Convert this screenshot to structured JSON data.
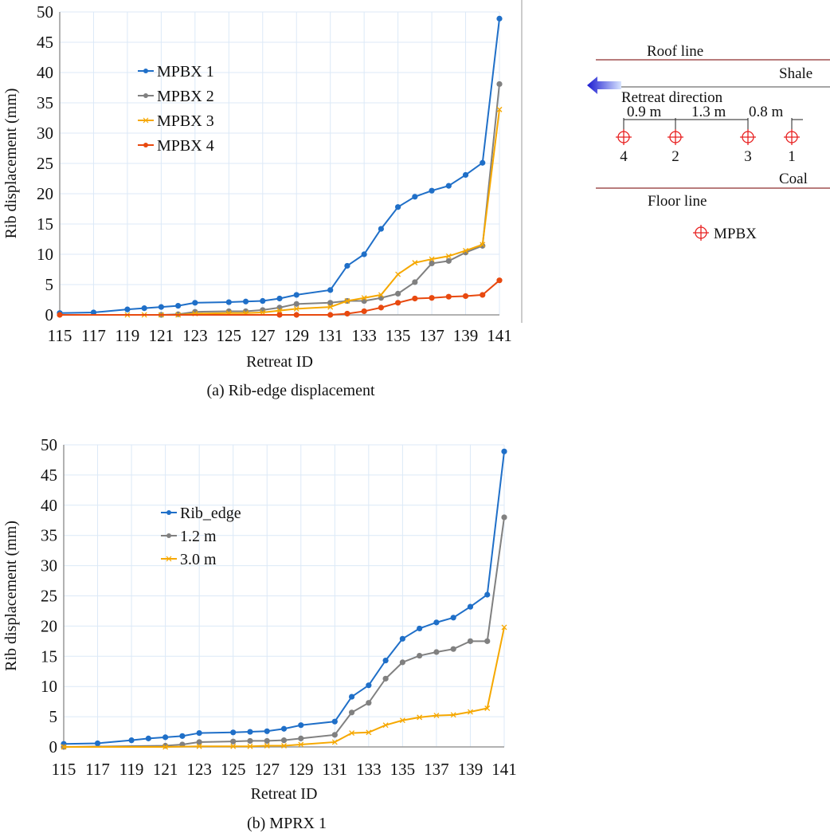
{
  "chart_data": [
    {
      "id": "a",
      "type": "line",
      "caption": "(a) Rib-edge displacement",
      "xlabel": "Retreat ID",
      "ylabel": "Rib displacement (mm)",
      "xlim": [
        115,
        141
      ],
      "ylim": [
        0,
        50
      ],
      "xticks": [
        "115",
        "117",
        "119",
        "121",
        "123",
        "125",
        "127",
        "129",
        "131",
        "133",
        "135",
        "137",
        "139",
        "141"
      ],
      "yticks": [
        "0",
        "5",
        "10",
        "15",
        "20",
        "25",
        "30",
        "35",
        "40",
        "45",
        "50"
      ],
      "grid": true,
      "legend_position": "upper-left-inside",
      "series": [
        {
          "name": "MPBX 1",
          "color": "#1f6fc8",
          "marker": "circle",
          "x": [
            115,
            117,
            119,
            120,
            121,
            122,
            123,
            125,
            126,
            127,
            128,
            129,
            131,
            132,
            133,
            134,
            135,
            136,
            137,
            138,
            139,
            140,
            141
          ],
          "y": [
            0.3,
            0.4,
            0.9,
            1.1,
            1.3,
            1.5,
            2.0,
            2.1,
            2.2,
            2.3,
            2.7,
            3.3,
            4.1,
            8.1,
            10.0,
            14.2,
            17.8,
            19.5,
            20.5,
            21.3,
            23.1,
            25.1,
            48.9
          ]
        },
        {
          "name": "MPBX 2",
          "color": "#808080",
          "marker": "circle",
          "x": [
            121,
            122,
            123,
            125,
            126,
            127,
            128,
            129,
            131,
            132,
            133,
            134,
            135,
            136,
            137,
            138,
            139,
            140,
            141
          ],
          "y": [
            0.0,
            0.1,
            0.5,
            0.6,
            0.6,
            0.8,
            1.2,
            1.8,
            2.0,
            2.3,
            2.3,
            2.8,
            3.5,
            5.4,
            8.5,
            8.9,
            10.3,
            11.4,
            38.1
          ]
        },
        {
          "name": "MPBX 3",
          "color": "#f6a800",
          "marker": "x",
          "x": [
            119,
            120,
            121,
            122,
            123,
            125,
            126,
            127,
            128,
            129,
            131,
            132,
            133,
            134,
            135,
            136,
            137,
            138,
            139,
            140,
            141
          ],
          "y": [
            0.0,
            0.0,
            0.0,
            0.0,
            0.2,
            0.3,
            0.3,
            0.4,
            0.7,
            1.0,
            1.3,
            2.3,
            2.8,
            3.3,
            6.7,
            8.6,
            9.2,
            9.7,
            10.6,
            11.6,
            33.9
          ]
        },
        {
          "name": "MPBX 4",
          "color": "#e8490f",
          "marker": "circle",
          "x": [
            115,
            128,
            129,
            131,
            132,
            133,
            134,
            135,
            136,
            137,
            138,
            139,
            140,
            141
          ],
          "y": [
            0.0,
            0.0,
            0.0,
            0.0,
            0.2,
            0.6,
            1.2,
            2.0,
            2.7,
            2.8,
            3.0,
            3.1,
            3.3,
            5.7
          ]
        }
      ]
    },
    {
      "id": "b",
      "type": "line",
      "caption": "(b) MPRX 1",
      "xlabel": "Retreat ID",
      "ylabel": "Rib displacement (mm)",
      "xlim": [
        115,
        141
      ],
      "ylim": [
        0,
        50
      ],
      "xticks": [
        "115",
        "117",
        "119",
        "121",
        "123",
        "125",
        "127",
        "129",
        "131",
        "133",
        "135",
        "137",
        "139",
        "141"
      ],
      "yticks": [
        "0",
        "5",
        "10",
        "15",
        "20",
        "25",
        "30",
        "35",
        "40",
        "45",
        "50"
      ],
      "grid": true,
      "legend_position": "upper-left-inside",
      "series": [
        {
          "name": "Rib_edge",
          "color": "#1f6fc8",
          "marker": "circle",
          "x": [
            115,
            117,
            119,
            120,
            121,
            122,
            123,
            125,
            126,
            127,
            128,
            129,
            131,
            132,
            133,
            134,
            135,
            136,
            137,
            138,
            139,
            140,
            141
          ],
          "y": [
            0.5,
            0.6,
            1.1,
            1.4,
            1.6,
            1.8,
            2.3,
            2.4,
            2.5,
            2.6,
            3.0,
            3.6,
            4.2,
            8.3,
            10.2,
            14.3,
            17.9,
            19.6,
            20.6,
            21.4,
            23.2,
            25.2,
            48.9
          ]
        },
        {
          "name": "1.2 m",
          "color": "#808080",
          "marker": "circle",
          "x": [
            115,
            121,
            122,
            123,
            125,
            126,
            127,
            128,
            129,
            131,
            132,
            133,
            134,
            135,
            136,
            137,
            138,
            139,
            140,
            141
          ],
          "y": [
            0.0,
            0.2,
            0.4,
            0.8,
            0.9,
            1.0,
            1.0,
            1.1,
            1.4,
            2.0,
            5.7,
            7.3,
            11.3,
            14.0,
            15.1,
            15.7,
            16.2,
            17.5,
            17.5,
            38.0
          ]
        },
        {
          "name": "3.0 m",
          "color": "#f6a800",
          "marker": "x",
          "x": [
            115,
            121,
            123,
            125,
            126,
            127,
            128,
            129,
            131,
            132,
            133,
            134,
            135,
            136,
            137,
            138,
            139,
            140,
            141
          ],
          "y": [
            0.0,
            0.0,
            0.1,
            0.1,
            0.1,
            0.2,
            0.2,
            0.4,
            0.8,
            2.3,
            2.4,
            3.6,
            4.4,
            4.9,
            5.2,
            5.3,
            5.8,
            6.4,
            19.8
          ]
        }
      ]
    }
  ],
  "schematic": {
    "roof_label": "Roof line",
    "shale_label": "Shale",
    "retreat_label": "Retreat direction",
    "coal_label": "Coal",
    "floor_label": "Floor line",
    "spacings": [
      "0.9 m",
      "1.3 m",
      "0.8 m"
    ],
    "mpbx_ids": [
      "4",
      "2",
      "3",
      "1"
    ],
    "legend_label": "MPBX",
    "line_color": "#a05050",
    "arrow_color": "#1a1ad0",
    "marker_color": "#e82020"
  }
}
